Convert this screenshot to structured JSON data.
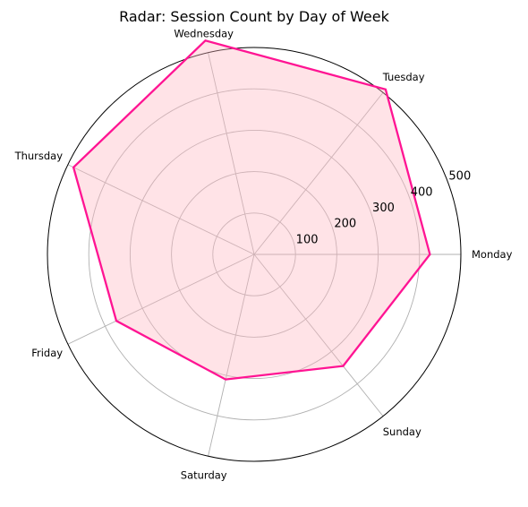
{
  "chart_data": {
    "type": "radar",
    "title": "Radar: Session Count by Day of Week",
    "categories": [
      "Monday",
      "Tuesday",
      "Wednesday",
      "Thursday",
      "Friday",
      "Saturday",
      "Sunday"
    ],
    "values": [
      425,
      510,
      530,
      485,
      370,
      310,
      345
    ],
    "rmax": 500,
    "rticks": [
      100,
      200,
      300,
      400,
      500
    ],
    "grid": true,
    "line_color": "#ff1493",
    "fill_color": "#ffb6c1"
  }
}
